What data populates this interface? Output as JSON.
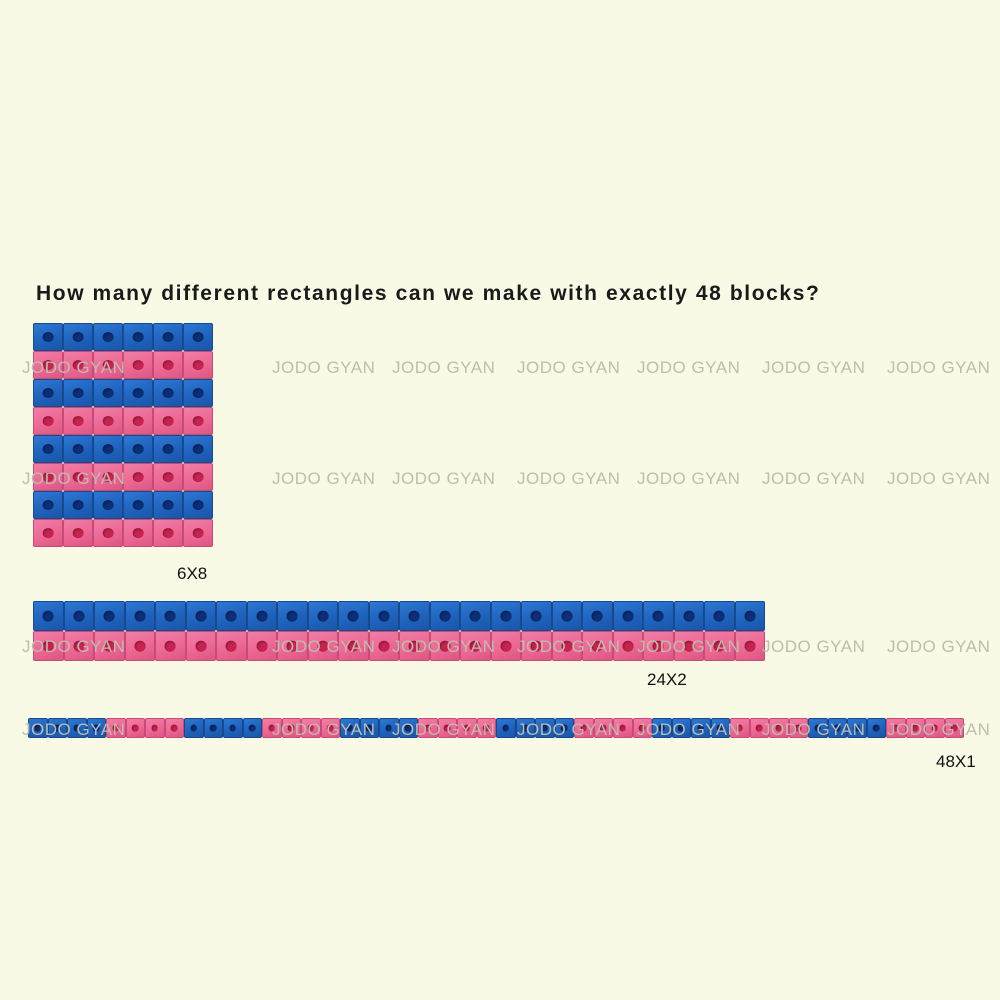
{
  "question": "How many different rectangles can we make with exactly 48 blocks?",
  "watermark_text": "JODO GYAN",
  "colors": {
    "blue": "#1f63bd",
    "pink": "#ec6893",
    "background": "#f8fae6"
  },
  "rectangles": [
    {
      "label": "6X8",
      "cols": 6,
      "rows": 8
    },
    {
      "label": "24X2",
      "cols": 24,
      "rows": 2
    },
    {
      "label": "48X1",
      "cols": 48,
      "rows": 1
    }
  ]
}
